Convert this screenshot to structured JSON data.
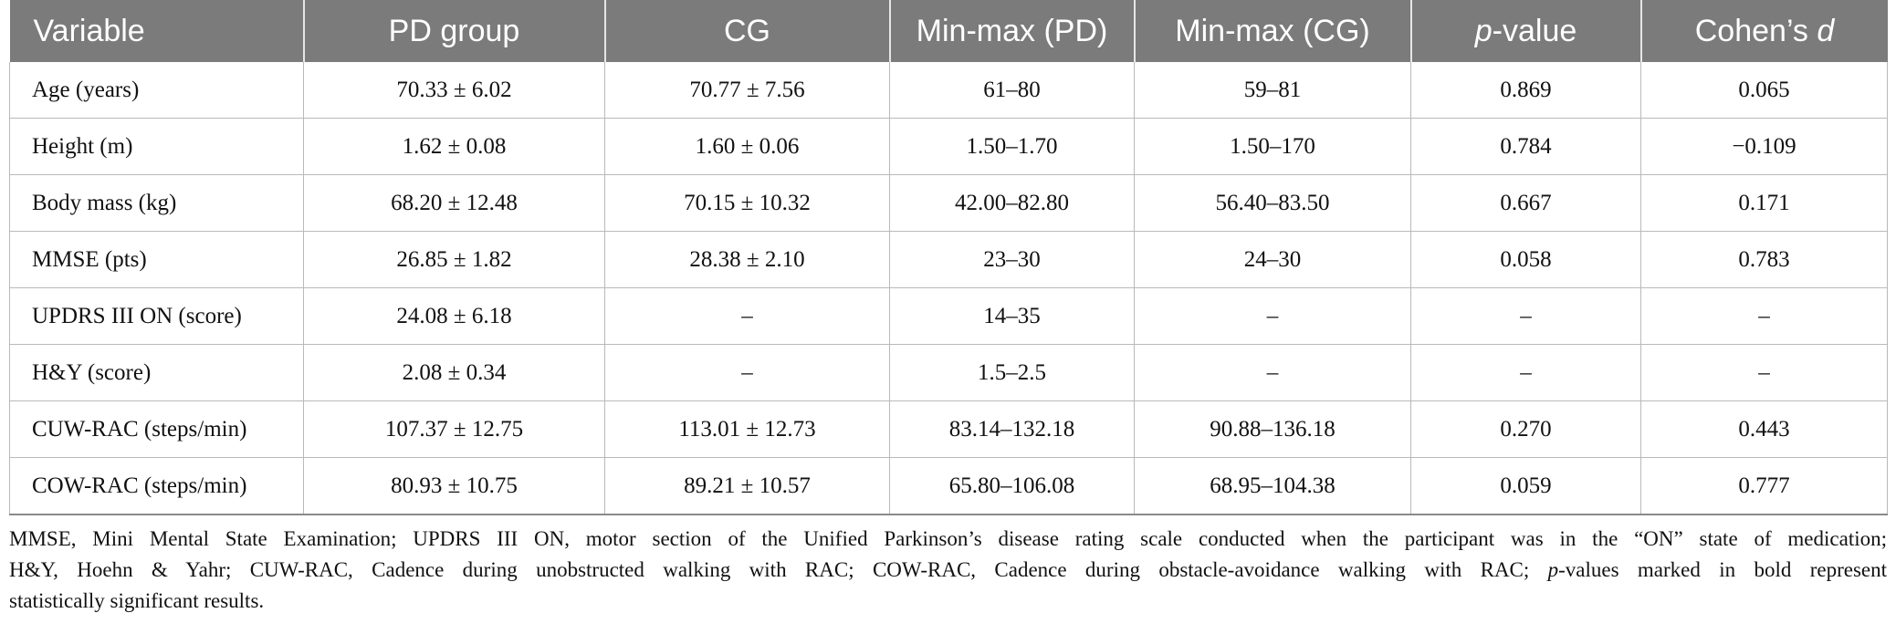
{
  "table": {
    "headers": [
      "Variable",
      "PD group",
      "CG",
      "Min-max (PD)",
      "Min-max (CG)",
      "p-value",
      "Cohen’s d"
    ],
    "header_parts": {
      "pvalue_italic": "p",
      "pvalue_rest": "-value",
      "cohen_rest": "Cohen’s ",
      "cohen_italic": "d"
    },
    "rows": [
      [
        "Age (years)",
        "70.33 ± 6.02",
        "70.77 ± 7.56",
        "61–80",
        "59–81",
        "0.869",
        "0.065"
      ],
      [
        "Height (m)",
        "1.62 ± 0.08",
        "1.60 ± 0.06",
        "1.50–1.70",
        "1.50–170",
        "0.784",
        "−0.109"
      ],
      [
        "Body mass (kg)",
        "68.20 ± 12.48",
        "70.15 ± 10.32",
        "42.00–82.80",
        "56.40–83.50",
        "0.667",
        "0.171"
      ],
      [
        "MMSE (pts)",
        "26.85 ± 1.82",
        "28.38 ± 2.10",
        "23–30",
        "24–30",
        "0.058",
        "0.783"
      ],
      [
        "UPDRS III ON (score)",
        "24.08 ± 6.18",
        "–",
        "14–35",
        "–",
        "–",
        "–"
      ],
      [
        "H&Y (score)",
        "2.08 ± 0.34",
        "–",
        "1.5–2.5",
        "–",
        "–",
        "–"
      ],
      [
        "CUW-RAC (steps/min)",
        "107.37 ± 12.75",
        "113.01 ± 12.73",
        "83.14–132.18",
        "90.88–136.18",
        "0.270",
        "0.443"
      ],
      [
        "COW-RAC (steps/min)",
        "80.93 ± 10.75",
        "89.21 ± 10.57",
        "65.80–106.08",
        "68.95–104.38",
        "0.059",
        "0.777"
      ]
    ]
  },
  "footnote": {
    "line1": "MMSE, Mini Mental State Examination; UPDRS III ON, motor section of the Unified Parkinson’s disease rating scale conducted when the participant was in the “ON” state of medication;",
    "line2_a": "H&Y, Hoehn & Yahr; CUW-RAC, Cadence during unobstructed walking with RAC; COW-RAC, Cadence during obstacle-avoidance walking with RAC; ",
    "line2_italic": "p",
    "line2_b": "-values marked in bold represent",
    "line3": "statistically significant results."
  }
}
